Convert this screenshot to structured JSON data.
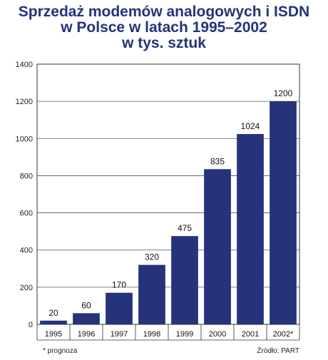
{
  "chart_data": {
    "type": "bar",
    "title_lines": [
      "Sprzedaż modemów analogowych i ISDN",
      "w Polsce w latach 1995–2002",
      "w tys. sztuk"
    ],
    "categories": [
      "1995",
      "1996",
      "1997",
      "1998",
      "1999",
      "2000",
      "2001",
      "2002*"
    ],
    "values": [
      20,
      60,
      170,
      320,
      475,
      835,
      1024,
      1200
    ],
    "value_labels": [
      "20",
      "60",
      "170",
      "320",
      "475",
      "835",
      "1024",
      "1200"
    ],
    "ylim": [
      0,
      1400
    ],
    "yticks": [
      0,
      200,
      400,
      600,
      800,
      1000,
      1200,
      1400
    ],
    "grid": true,
    "footnote": "* prognoza",
    "source": "Źródło: PART",
    "colors": {
      "bar": "#24337a",
      "title": "#24337a",
      "grid": "#555555"
    }
  }
}
